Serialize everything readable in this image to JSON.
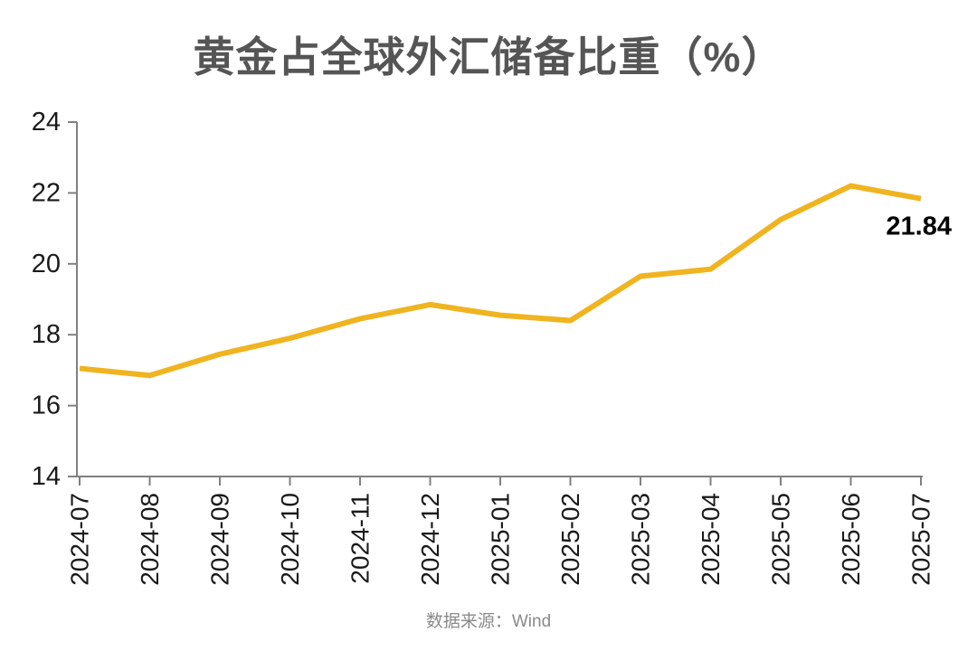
{
  "title": "黄金占全球外汇储备比重（%）",
  "source_note": "数据来源：Wind",
  "chart_data": {
    "type": "line",
    "title": "黄金占全球外汇储备比重（%）",
    "categories": [
      "2024-07",
      "2024-08",
      "2024-09",
      "2024-10",
      "2024-11",
      "2024-12",
      "2025-01",
      "2025-02",
      "2025-03",
      "2025-04",
      "2025-05",
      "2025-06",
      "2025-07"
    ],
    "values": [
      17.05,
      16.85,
      17.45,
      17.9,
      18.45,
      18.85,
      18.55,
      18.4,
      19.65,
      19.85,
      21.25,
      22.2,
      21.84
    ],
    "xlabel": "",
    "ylabel": "",
    "ylim": [
      14,
      24
    ],
    "yticks": [
      14,
      16,
      18,
      20,
      22,
      24
    ],
    "grid": false,
    "legend": "none",
    "line_color": "#EFB41F",
    "annotation": {
      "text": "21.84",
      "index": 12
    }
  },
  "colors": {
    "title": "#555555",
    "axis": "#808080",
    "tick_label": "#1a1a1a",
    "annotation": "#000000",
    "source": "#8a8a8a"
  }
}
